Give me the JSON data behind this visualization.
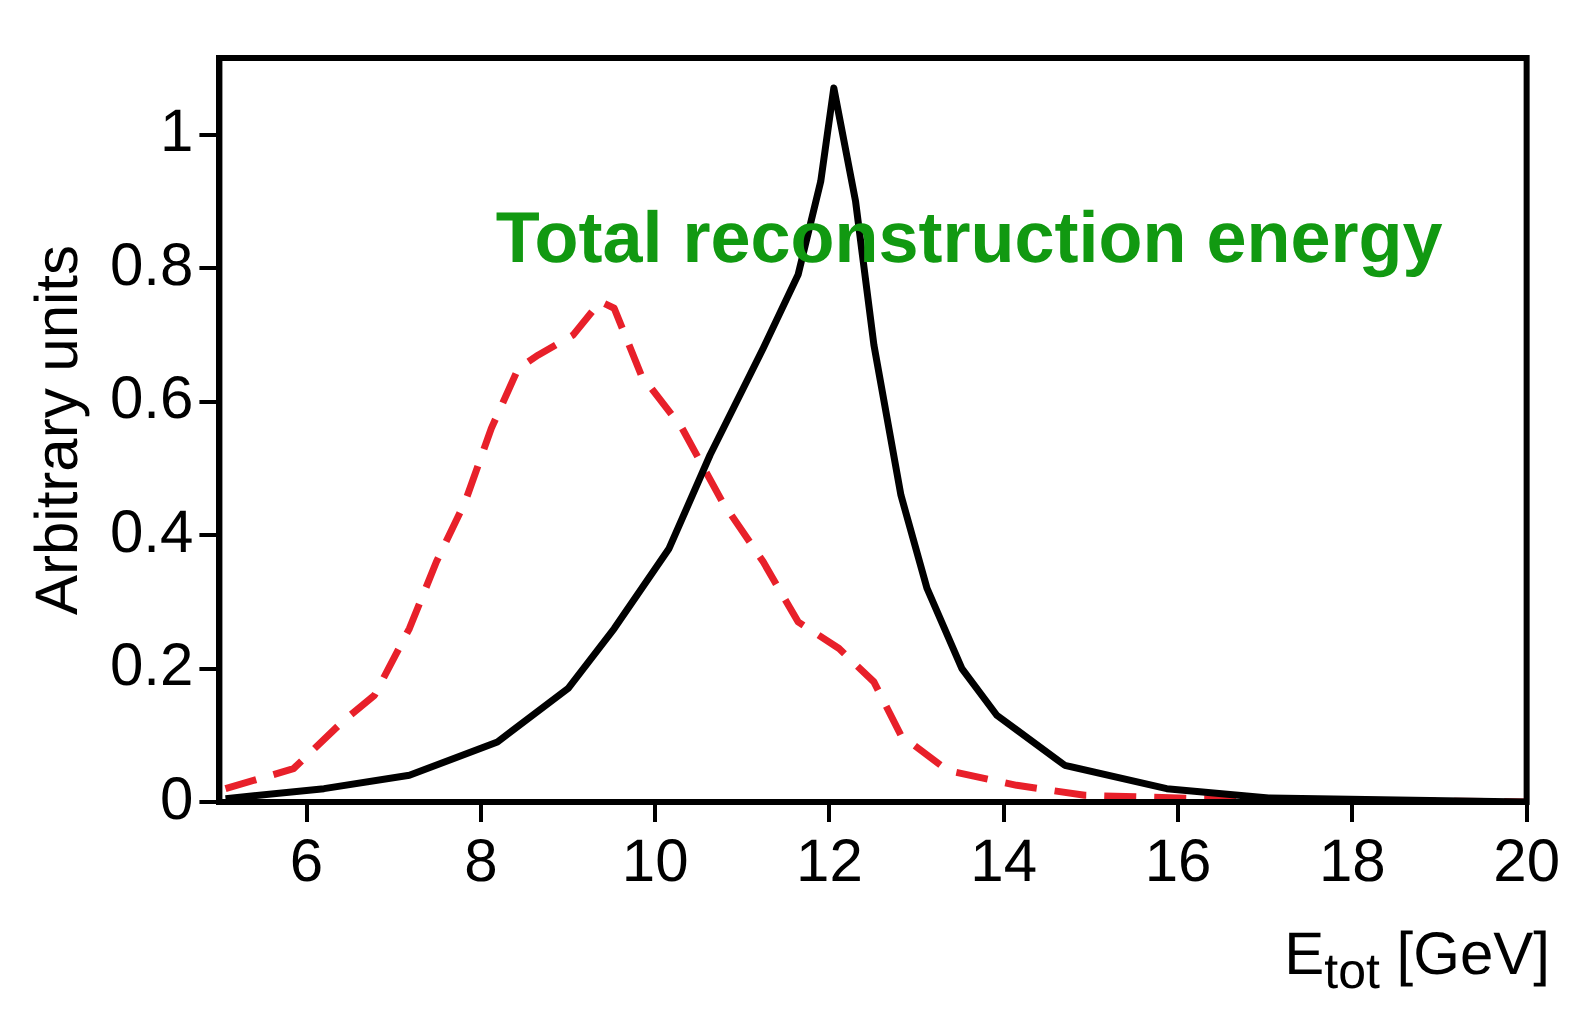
{
  "chart_data": {
    "type": "line",
    "title": "Total reconstruction energy",
    "xlabel": "E$_{tot}$ [GeV]",
    "ylabel": "Arbitrary units",
    "xlim": [
      5,
      20
    ],
    "xticks": [
      6,
      8,
      10,
      12,
      14,
      16,
      18,
      20
    ],
    "ylim": [
      0,
      1.115
    ],
    "yticks": [
      0,
      0.2,
      0.4,
      0.6,
      0.8,
      1
    ],
    "grid": false,
    "marker": "none",
    "series": [
      {
        "color": "#000000",
        "line_style": "solid",
        "x": [
          5.07,
          6.2,
          7.18,
          8.19,
          9.0,
          9.53,
          10.16,
          10.63,
          11.24,
          11.64,
          11.9,
          12.05,
          12.3,
          12.51,
          12.82,
          13.12,
          13.52,
          13.92,
          14.7,
          15.87,
          17.04,
          20
        ],
        "values": [
          0.005,
          0.02,
          0.04,
          0.09,
          0.17,
          0.26,
          0.38,
          0.52,
          0.68,
          0.79,
          0.93,
          1.07,
          0.9,
          0.685,
          0.46,
          0.32,
          0.2,
          0.13,
          0.055,
          0.02,
          0.006,
          0
        ]
      },
      {
        "color": "#e8202a",
        "line_style": "dashed",
        "x": [
          5.07,
          5.85,
          6.41,
          6.78,
          7.18,
          7.49,
          7.82,
          8.12,
          8.43,
          8.66,
          9.06,
          9.37,
          9.53,
          9.84,
          10.31,
          10.77,
          11.24,
          11.64,
          12.11,
          12.51,
          12.82,
          13.36,
          14.15,
          14.93,
          16.27,
          20
        ],
        "values": [
          0.02,
          0.05,
          0.12,
          0.16,
          0.26,
          0.36,
          0.45,
          0.56,
          0.65,
          0.67,
          0.7,
          0.75,
          0.74,
          0.64,
          0.56,
          0.45,
          0.36,
          0.27,
          0.23,
          0.18,
          0.1,
          0.047,
          0.025,
          0.01,
          0.005,
          0
        ]
      }
    ]
  }
}
